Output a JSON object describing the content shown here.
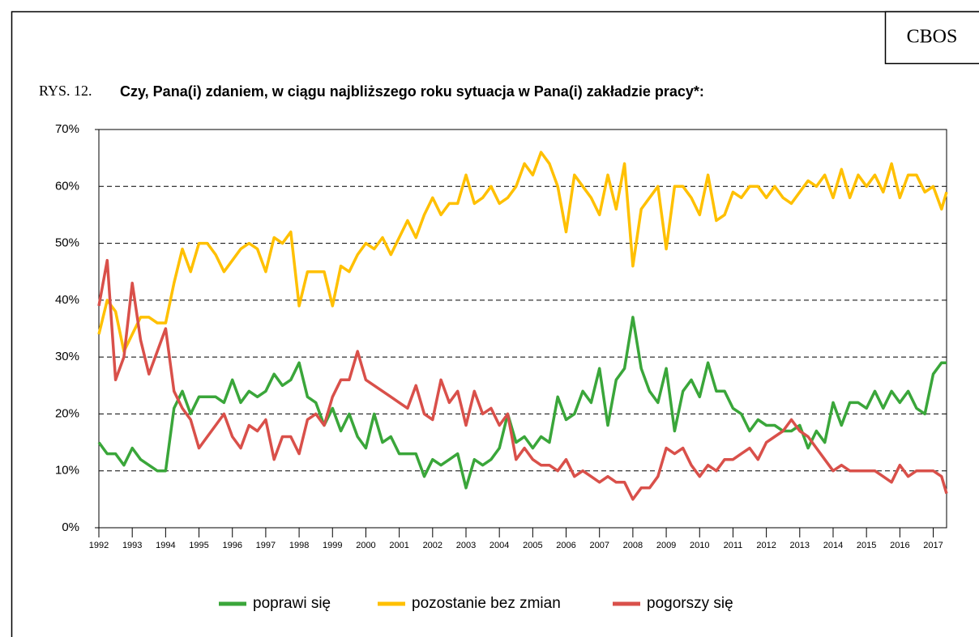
{
  "chart_data": {
    "type": "line",
    "header": "CBOS",
    "figure_label": "RYS. 12.",
    "title": "Czy, Pana(i) zdaniem, w ciągu najbliższego roku sytuacja w Pana(i) zakładzie pracy*:",
    "legend": "bottom",
    "grid": true,
    "xlim": [
      1992,
      2017.4
    ],
    "xticks": [
      1992,
      1993,
      1994,
      1995,
      1996,
      1997,
      1998,
      1999,
      2000,
      2001,
      2002,
      2003,
      2004,
      2005,
      2006,
      2007,
      2008,
      2009,
      2010,
      2011,
      2012,
      2013,
      2014,
      2015,
      2016,
      2017
    ],
    "ylim": [
      0,
      70
    ],
    "yticks": [
      {
        "value": 0,
        "label": "0%"
      },
      {
        "value": 10,
        "label": "10%"
      },
      {
        "value": 20,
        "label": "20%"
      },
      {
        "value": 30,
        "label": "30%"
      },
      {
        "value": 40,
        "label": "40%"
      },
      {
        "value": 50,
        "label": "50%"
      },
      {
        "value": 60,
        "label": "60%"
      },
      {
        "value": 70,
        "label": "70%"
      }
    ],
    "x": [
      1992,
      1992.25,
      1992.5,
      1992.75,
      1993,
      1993.25,
      1993.5,
      1993.75,
      1994,
      1994.25,
      1994.5,
      1994.75,
      1995,
      1995.25,
      1995.5,
      1995.75,
      1996,
      1996.25,
      1996.5,
      1996.75,
      1997,
      1997.25,
      1997.5,
      1997.75,
      1998,
      1998.25,
      1998.5,
      1998.75,
      1999,
      1999.25,
      1999.5,
      1999.75,
      2000,
      2000.25,
      2000.5,
      2000.75,
      2001,
      2001.25,
      2001.5,
      2001.75,
      2002,
      2002.25,
      2002.5,
      2002.75,
      2003,
      2003.25,
      2003.5,
      2003.75,
      2004,
      2004.25,
      2004.5,
      2004.75,
      2005,
      2005.25,
      2005.5,
      2005.75,
      2006,
      2006.25,
      2006.5,
      2006.75,
      2007,
      2007.25,
      2007.5,
      2007.75,
      2008,
      2008.25,
      2008.5,
      2008.75,
      2009,
      2009.25,
      2009.5,
      2009.75,
      2010,
      2010.25,
      2010.5,
      2010.75,
      2011,
      2011.25,
      2011.5,
      2011.75,
      2012,
      2012.25,
      2012.5,
      2012.75,
      2013,
      2013.25,
      2013.5,
      2013.75,
      2014,
      2014.25,
      2014.5,
      2014.75,
      2015,
      2015.25,
      2015.5,
      2015.75,
      2016,
      2016.25,
      2016.5,
      2016.75,
      2017,
      2017.25,
      2017.4
    ],
    "series": [
      {
        "name": "poprawi się",
        "color": "#3aa63a",
        "values": [
          15,
          13,
          13,
          11,
          14,
          12,
          11,
          10,
          10,
          21,
          24,
          20,
          23,
          23,
          23,
          22,
          26,
          22,
          24,
          23,
          24,
          27,
          25,
          26,
          29,
          23,
          22,
          18,
          21,
          17,
          20,
          16,
          14,
          20,
          15,
          16,
          13,
          13,
          13,
          9,
          12,
          11,
          12,
          13,
          7,
          12,
          11,
          12,
          14,
          20,
          15,
          16,
          14,
          16,
          15,
          23,
          19,
          20,
          24,
          22,
          28,
          18,
          26,
          28,
          37,
          28,
          24,
          22,
          28,
          17,
          24,
          26,
          23,
          29,
          24,
          24,
          21,
          20,
          17,
          19,
          18,
          18,
          17,
          17,
          18,
          14,
          17,
          15,
          22,
          18,
          22,
          22,
          21,
          24,
          21,
          24,
          22,
          24,
          21,
          20,
          27,
          29,
          29
        ]
      },
      {
        "name": "pozostanie bez zmian",
        "color": "#ffc000",
        "values": [
          34,
          40,
          38,
          31,
          34,
          37,
          37,
          36,
          36,
          43,
          49,
          45,
          50,
          50,
          48,
          45,
          47,
          49,
          50,
          49,
          45,
          51,
          50,
          52,
          39,
          45,
          45,
          45,
          39,
          46,
          45,
          48,
          50,
          49,
          51,
          48,
          51,
          54,
          51,
          55,
          58,
          55,
          57,
          57,
          62,
          57,
          58,
          60,
          57,
          58,
          60,
          64,
          62,
          66,
          64,
          60,
          52,
          62,
          60,
          58,
          55,
          62,
          56,
          64,
          46,
          56,
          58,
          60,
          49,
          60,
          60,
          58,
          55,
          62,
          54,
          55,
          59,
          58,
          60,
          60,
          58,
          60,
          58,
          57,
          59,
          61,
          60,
          62,
          58,
          63,
          58,
          62,
          60,
          62,
          59,
          64,
          58,
          62,
          62,
          59,
          60,
          56,
          59
        ]
      },
      {
        "name": "pogorszy się",
        "color": "#d9504a",
        "values": [
          39,
          47,
          26,
          30,
          43,
          33,
          27,
          31,
          35,
          24,
          21,
          19,
          14,
          16,
          18,
          20,
          16,
          14,
          18,
          17,
          19,
          12,
          16,
          16,
          13,
          19,
          20,
          18,
          23,
          26,
          26,
          31,
          26,
          25,
          24,
          23,
          22,
          21,
          25,
          20,
          19,
          26,
          22,
          24,
          18,
          24,
          20,
          21,
          18,
          20,
          12,
          14,
          12,
          11,
          11,
          10,
          12,
          9,
          10,
          9,
          8,
          9,
          8,
          8,
          5,
          7,
          7,
          9,
          14,
          13,
          14,
          11,
          9,
          11,
          10,
          12,
          12,
          13,
          14,
          12,
          15,
          16,
          17,
          19,
          17,
          16,
          14,
          12,
          10,
          11,
          10,
          10,
          10,
          10,
          9,
          8,
          11,
          9,
          10,
          10,
          10,
          9,
          6
        ]
      }
    ]
  }
}
